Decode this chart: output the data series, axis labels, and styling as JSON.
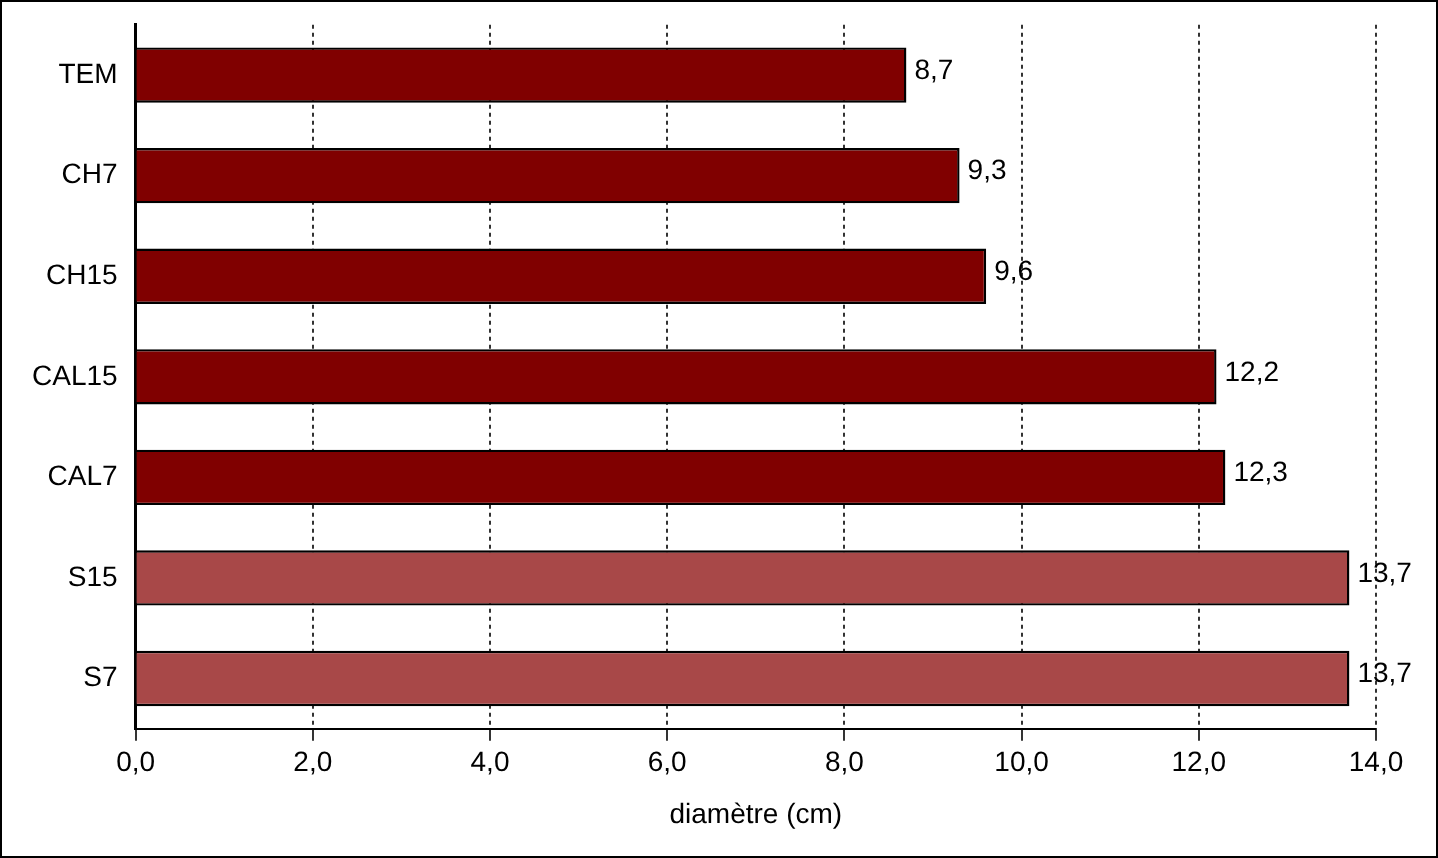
{
  "chart_data": {
    "type": "bar",
    "orientation": "horizontal",
    "xlabel": "diamètre (cm)",
    "categories": [
      "TEM",
      "CH7",
      "CH15",
      "CAL15",
      "CAL7",
      "S15",
      "S7"
    ],
    "values": [
      8.7,
      9.3,
      9.6,
      12.2,
      12.3,
      13.7,
      13.7
    ],
    "value_labels": [
      "8,7",
      "9,3",
      "9,6",
      "12,2",
      "12,3",
      "13,7",
      "13,7"
    ],
    "colors": [
      "#800000",
      "#800000",
      "#800000",
      "#800000",
      "#800000",
      "#a84848",
      "#a84848"
    ],
    "xlim": [
      0,
      14
    ],
    "xticks": [
      {
        "value": 0,
        "label": "0,0"
      },
      {
        "value": 2,
        "label": "2,0"
      },
      {
        "value": 4,
        "label": "4,0"
      },
      {
        "value": 6,
        "label": "6,0"
      },
      {
        "value": 8,
        "label": "8,0"
      },
      {
        "value": 10,
        "label": "10,0"
      },
      {
        "value": 12,
        "label": "12,0"
      },
      {
        "value": 14,
        "label": "14,0"
      }
    ],
    "grid": "x"
  }
}
